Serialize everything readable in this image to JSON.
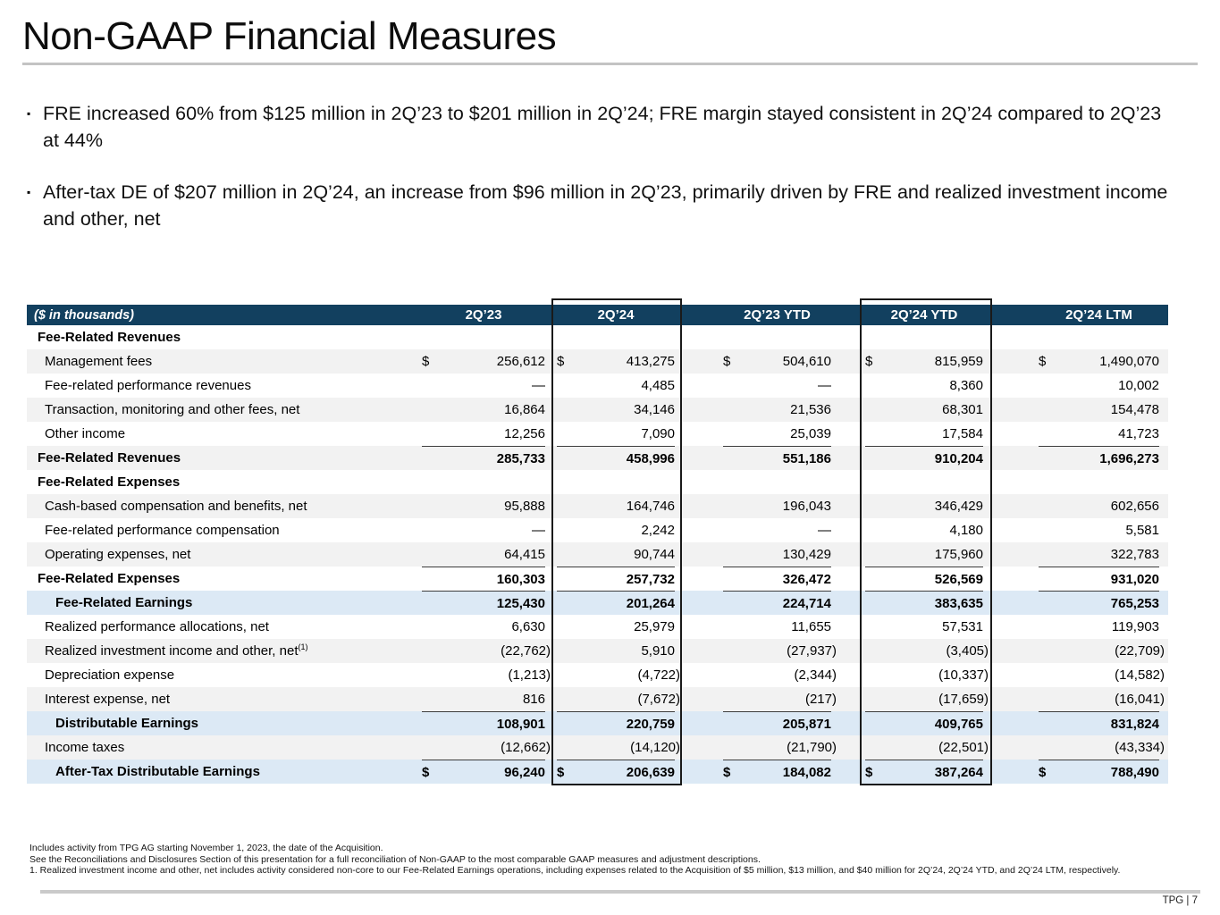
{
  "slide": {
    "title": "Non-GAAP Financial Measures",
    "bullets": [
      "FRE increased 60% from $125 million in 2Q’23 to $201 million in 2Q’24; FRE margin stayed consistent in 2Q’24 compared to 2Q’23 at 44%",
      "After-tax DE of $207 million in 2Q’24, an increase from $96 million in 2Q’23, primarily driven by FRE and realized investment income and other, net"
    ],
    "page_label": "TPG | 7"
  },
  "table": {
    "unit_label": "($ in thousands)",
    "columns": [
      {
        "label": "2Q’23",
        "boxed": false
      },
      {
        "label": "2Q’24",
        "boxed": true
      },
      {
        "label": "2Q’23 YTD",
        "boxed": false
      },
      {
        "label": "2Q’24 YTD",
        "boxed": true
      },
      {
        "label": "2Q’24 LTM",
        "boxed": false
      }
    ],
    "rows": [
      {
        "label": "Fee-Related Revenues",
        "type": "section",
        "shade": "white",
        "rule": false,
        "dollar": false,
        "values": [
          "",
          "",
          "",
          "",
          ""
        ]
      },
      {
        "label": "Management fees",
        "type": "item",
        "shade": "gray",
        "rule": false,
        "dollar": true,
        "values": [
          "256,612",
          "413,275",
          "504,610",
          "815,959",
          "1,490,070"
        ]
      },
      {
        "label": "Fee-related performance revenues",
        "type": "item",
        "shade": "white",
        "rule": false,
        "dollar": false,
        "values": [
          "—",
          "4,485",
          "—",
          "8,360",
          "10,002"
        ]
      },
      {
        "label": "Transaction, monitoring and other fees, net",
        "type": "item",
        "shade": "gray",
        "rule": false,
        "dollar": false,
        "values": [
          "16,864",
          "34,146",
          "21,536",
          "68,301",
          "154,478"
        ]
      },
      {
        "label": "Other income",
        "type": "item",
        "shade": "white",
        "rule": false,
        "dollar": false,
        "values": [
          "12,256",
          "7,090",
          "25,039",
          "17,584",
          "41,723"
        ]
      },
      {
        "label": "Fee-Related Revenues",
        "type": "total",
        "shade": "gray",
        "rule": true,
        "dollar": false,
        "values": [
          "285,733",
          "458,996",
          "551,186",
          "910,204",
          "1,696,273"
        ]
      },
      {
        "label": "Fee-Related Expenses",
        "type": "section",
        "shade": "white",
        "rule": false,
        "dollar": false,
        "values": [
          "",
          "",
          "",
          "",
          ""
        ]
      },
      {
        "label": "Cash-based compensation and benefits, net",
        "type": "item",
        "shade": "gray",
        "rule": false,
        "dollar": false,
        "values": [
          "95,888",
          "164,746",
          "196,043",
          "346,429",
          "602,656"
        ]
      },
      {
        "label": "Fee-related performance compensation",
        "type": "item",
        "shade": "white",
        "rule": false,
        "dollar": false,
        "values": [
          "—",
          "2,242",
          "—",
          "4,180",
          "5,581"
        ]
      },
      {
        "label": "Operating expenses, net",
        "type": "item",
        "shade": "gray",
        "rule": false,
        "dollar": false,
        "values": [
          "64,415",
          "90,744",
          "130,429",
          "175,960",
          "322,783"
        ]
      },
      {
        "label": "Fee-Related Expenses",
        "type": "total",
        "shade": "white",
        "rule": true,
        "dollar": false,
        "values": [
          "160,303",
          "257,732",
          "326,472",
          "526,569",
          "931,020"
        ]
      },
      {
        "label": "Fee-Related Earnings",
        "type": "subtotal",
        "shade": "blue",
        "rule": true,
        "dollar": false,
        "values": [
          "125,430",
          "201,264",
          "224,714",
          "383,635",
          "765,253"
        ]
      },
      {
        "label": "Realized performance allocations, net",
        "type": "item",
        "shade": "white",
        "rule": false,
        "dollar": false,
        "values": [
          "6,630",
          "25,979",
          "11,655",
          "57,531",
          "119,903"
        ]
      },
      {
        "label": "Realized investment income and other, net",
        "sup": "(1)",
        "type": "item",
        "shade": "gray",
        "rule": false,
        "dollar": false,
        "values": [
          "(22,762)",
          "5,910",
          "(27,937)",
          "(3,405)",
          "(22,709)"
        ]
      },
      {
        "label": "Depreciation expense",
        "type": "item",
        "shade": "white",
        "rule": false,
        "dollar": false,
        "values": [
          "(1,213)",
          "(4,722)",
          "(2,344)",
          "(10,337)",
          "(14,582)"
        ]
      },
      {
        "label": "Interest expense, net",
        "type": "item",
        "shade": "gray",
        "rule": false,
        "dollar": false,
        "values": [
          "816",
          "(7,672)",
          "(217)",
          "(17,659)",
          "(16,041)"
        ]
      },
      {
        "label": "Distributable Earnings",
        "type": "subtotal",
        "shade": "blue",
        "rule": true,
        "dollar": false,
        "values": [
          "108,901",
          "220,759",
          "205,871",
          "409,765",
          "831,824"
        ]
      },
      {
        "label": "Income taxes",
        "type": "item",
        "shade": "gray",
        "rule": false,
        "dollar": false,
        "values": [
          "(12,662)",
          "(14,120)",
          "(21,790)",
          "(22,501)",
          "(43,334)"
        ]
      },
      {
        "label": "After-Tax Distributable Earnings",
        "type": "subtotal",
        "shade": "blue",
        "rule": true,
        "dollar": true,
        "values": [
          "96,240",
          "206,639",
          "184,082",
          "387,264",
          "788,490"
        ]
      }
    ]
  },
  "footnotes": [
    "Includes activity from TPG AG starting November 1, 2023, the date of the Acquisition.",
    "See the Reconciliations and Disclosures Section of this presentation for a full reconciliation of Non-GAAP to the most comparable GAAP measures and adjustment descriptions.",
    "1. Realized investment income and other, net includes activity considered non-core to our Fee-Related Earnings operations, including expenses related to the Acquisition of $5 million, $13 million, and $40 million for 2Q’24, 2Q’24 YTD, and 2Q’24 LTM, respectively."
  ],
  "colors": {
    "header_navy": "#12405f",
    "subtotal_blue": "#dce9f5",
    "stripe_gray": "#f2f2f2",
    "highlight_border": "#1a1a1a"
  }
}
